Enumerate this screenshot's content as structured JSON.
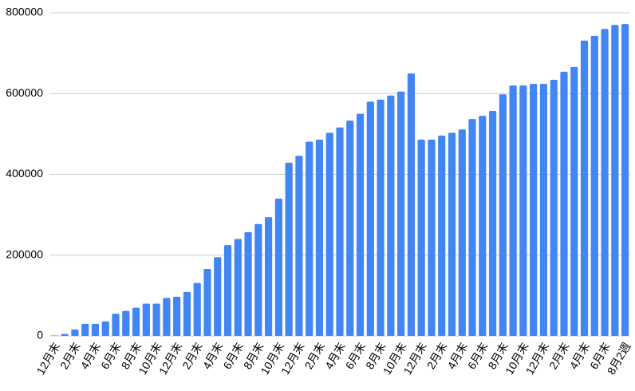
{
  "chart_data": {
    "type": "bar",
    "categories": [
      "12月末",
      null,
      "2月末",
      null,
      "4月末",
      null,
      "6月末",
      null,
      "8月末",
      null,
      "10月末",
      null,
      "12月末",
      null,
      "2月末",
      null,
      "4月末",
      null,
      "6月末",
      null,
      "8月末",
      null,
      "10月末",
      null,
      "12月末",
      null,
      "2月末",
      null,
      "4月末",
      null,
      "6月末",
      null,
      "8月末",
      null,
      "10月末",
      null,
      "12月末",
      null,
      "2月末",
      null,
      "4月末",
      null,
      "6月末",
      null,
      "8月末",
      null,
      "10月末",
      null,
      "12月末",
      null,
      "2月末",
      null,
      "4月末",
      null,
      "6月末",
      null,
      "8月2週"
    ],
    "values": [
      1000,
      5000,
      16000,
      30000,
      30000,
      36000,
      55000,
      62000,
      70000,
      80000,
      80000,
      94000,
      97000,
      109000,
      131000,
      166000,
      195000,
      225000,
      240000,
      257000,
      277000,
      294000,
      340000,
      429000,
      446000,
      481000,
      486000,
      503000,
      516000,
      533000,
      550000,
      580000,
      585000,
      595000,
      605000,
      650000,
      486000,
      486000,
      496000,
      503000,
      511000,
      537000,
      545000,
      557000,
      598000,
      620000,
      620000,
      624000,
      624000,
      634000,
      654000,
      666000,
      731000,
      743000,
      760000,
      770000,
      772000
    ],
    "color": "#4285f4",
    "ylim": [
      0,
      800000
    ],
    "yticks": [
      0,
      200000,
      400000,
      600000,
      800000
    ],
    "grid": true
  }
}
